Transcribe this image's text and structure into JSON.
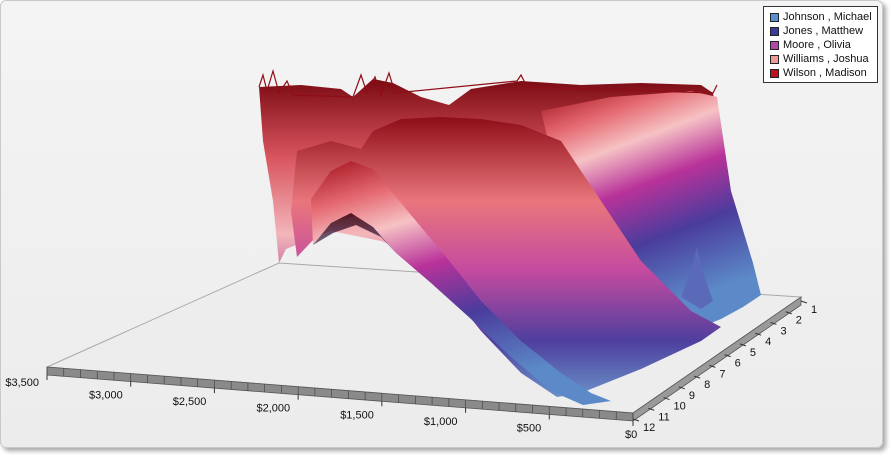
{
  "chart_data": {
    "type": "area",
    "render": "3d-surface",
    "x_axis": {
      "tick_labels": [
        "$3,500",
        "$3,000",
        "$2,500",
        "$2,000",
        "$1,500",
        "$1,000",
        "$500",
        "$0"
      ],
      "range": [
        0,
        3500
      ]
    },
    "depth_axis": {
      "tick_labels": [
        "1",
        "2",
        "3",
        "4",
        "5",
        "6",
        "7",
        "8",
        "9",
        "10",
        "11",
        "12"
      ],
      "range": [
        1,
        12
      ]
    },
    "legend": {
      "position": "top-right",
      "entries": [
        {
          "label": "Johnson , Michael",
          "color": "#5b8fd0"
        },
        {
          "label": "Jones , Matthew",
          "color": "#3a3a9a"
        },
        {
          "label": "Moore , Olivia",
          "color": "#b04aa8"
        },
        {
          "label": "Williams , Joshua",
          "color": "#ee9a95"
        },
        {
          "label": "Wilson , Madison",
          "color": "#c0121e"
        }
      ]
    },
    "grid": false
  }
}
